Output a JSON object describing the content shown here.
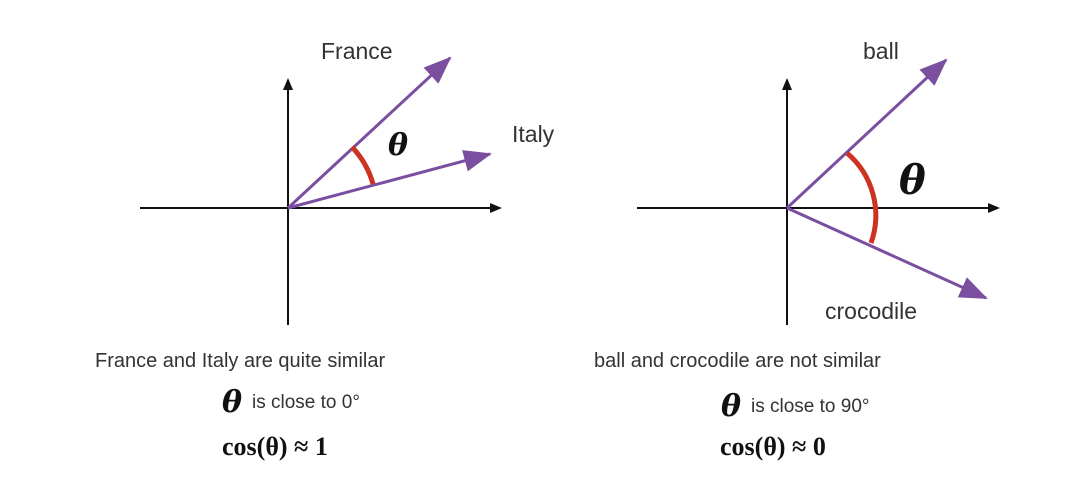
{
  "colors": {
    "vector": "#7b4fa0",
    "angle_arc": "#cc3322",
    "axis": "#111111",
    "text": "#333333"
  },
  "left": {
    "vector_upper_label": "France",
    "vector_lower_label": "Italy",
    "angle_symbol": "θ",
    "caption": "France and Italy are quite similar",
    "angle_symbol_line": "θ",
    "angle_text": "is close to 0°",
    "formula": "cos(θ) ≈ 1"
  },
  "right": {
    "vector_upper_label": "ball",
    "vector_lower_label": "crocodile",
    "angle_symbol": "θ",
    "caption": "ball and crocodile are not similar",
    "angle_symbol_line": "θ",
    "angle_text": "is close to 90°",
    "formula": "cos(θ) ≈ 0"
  }
}
